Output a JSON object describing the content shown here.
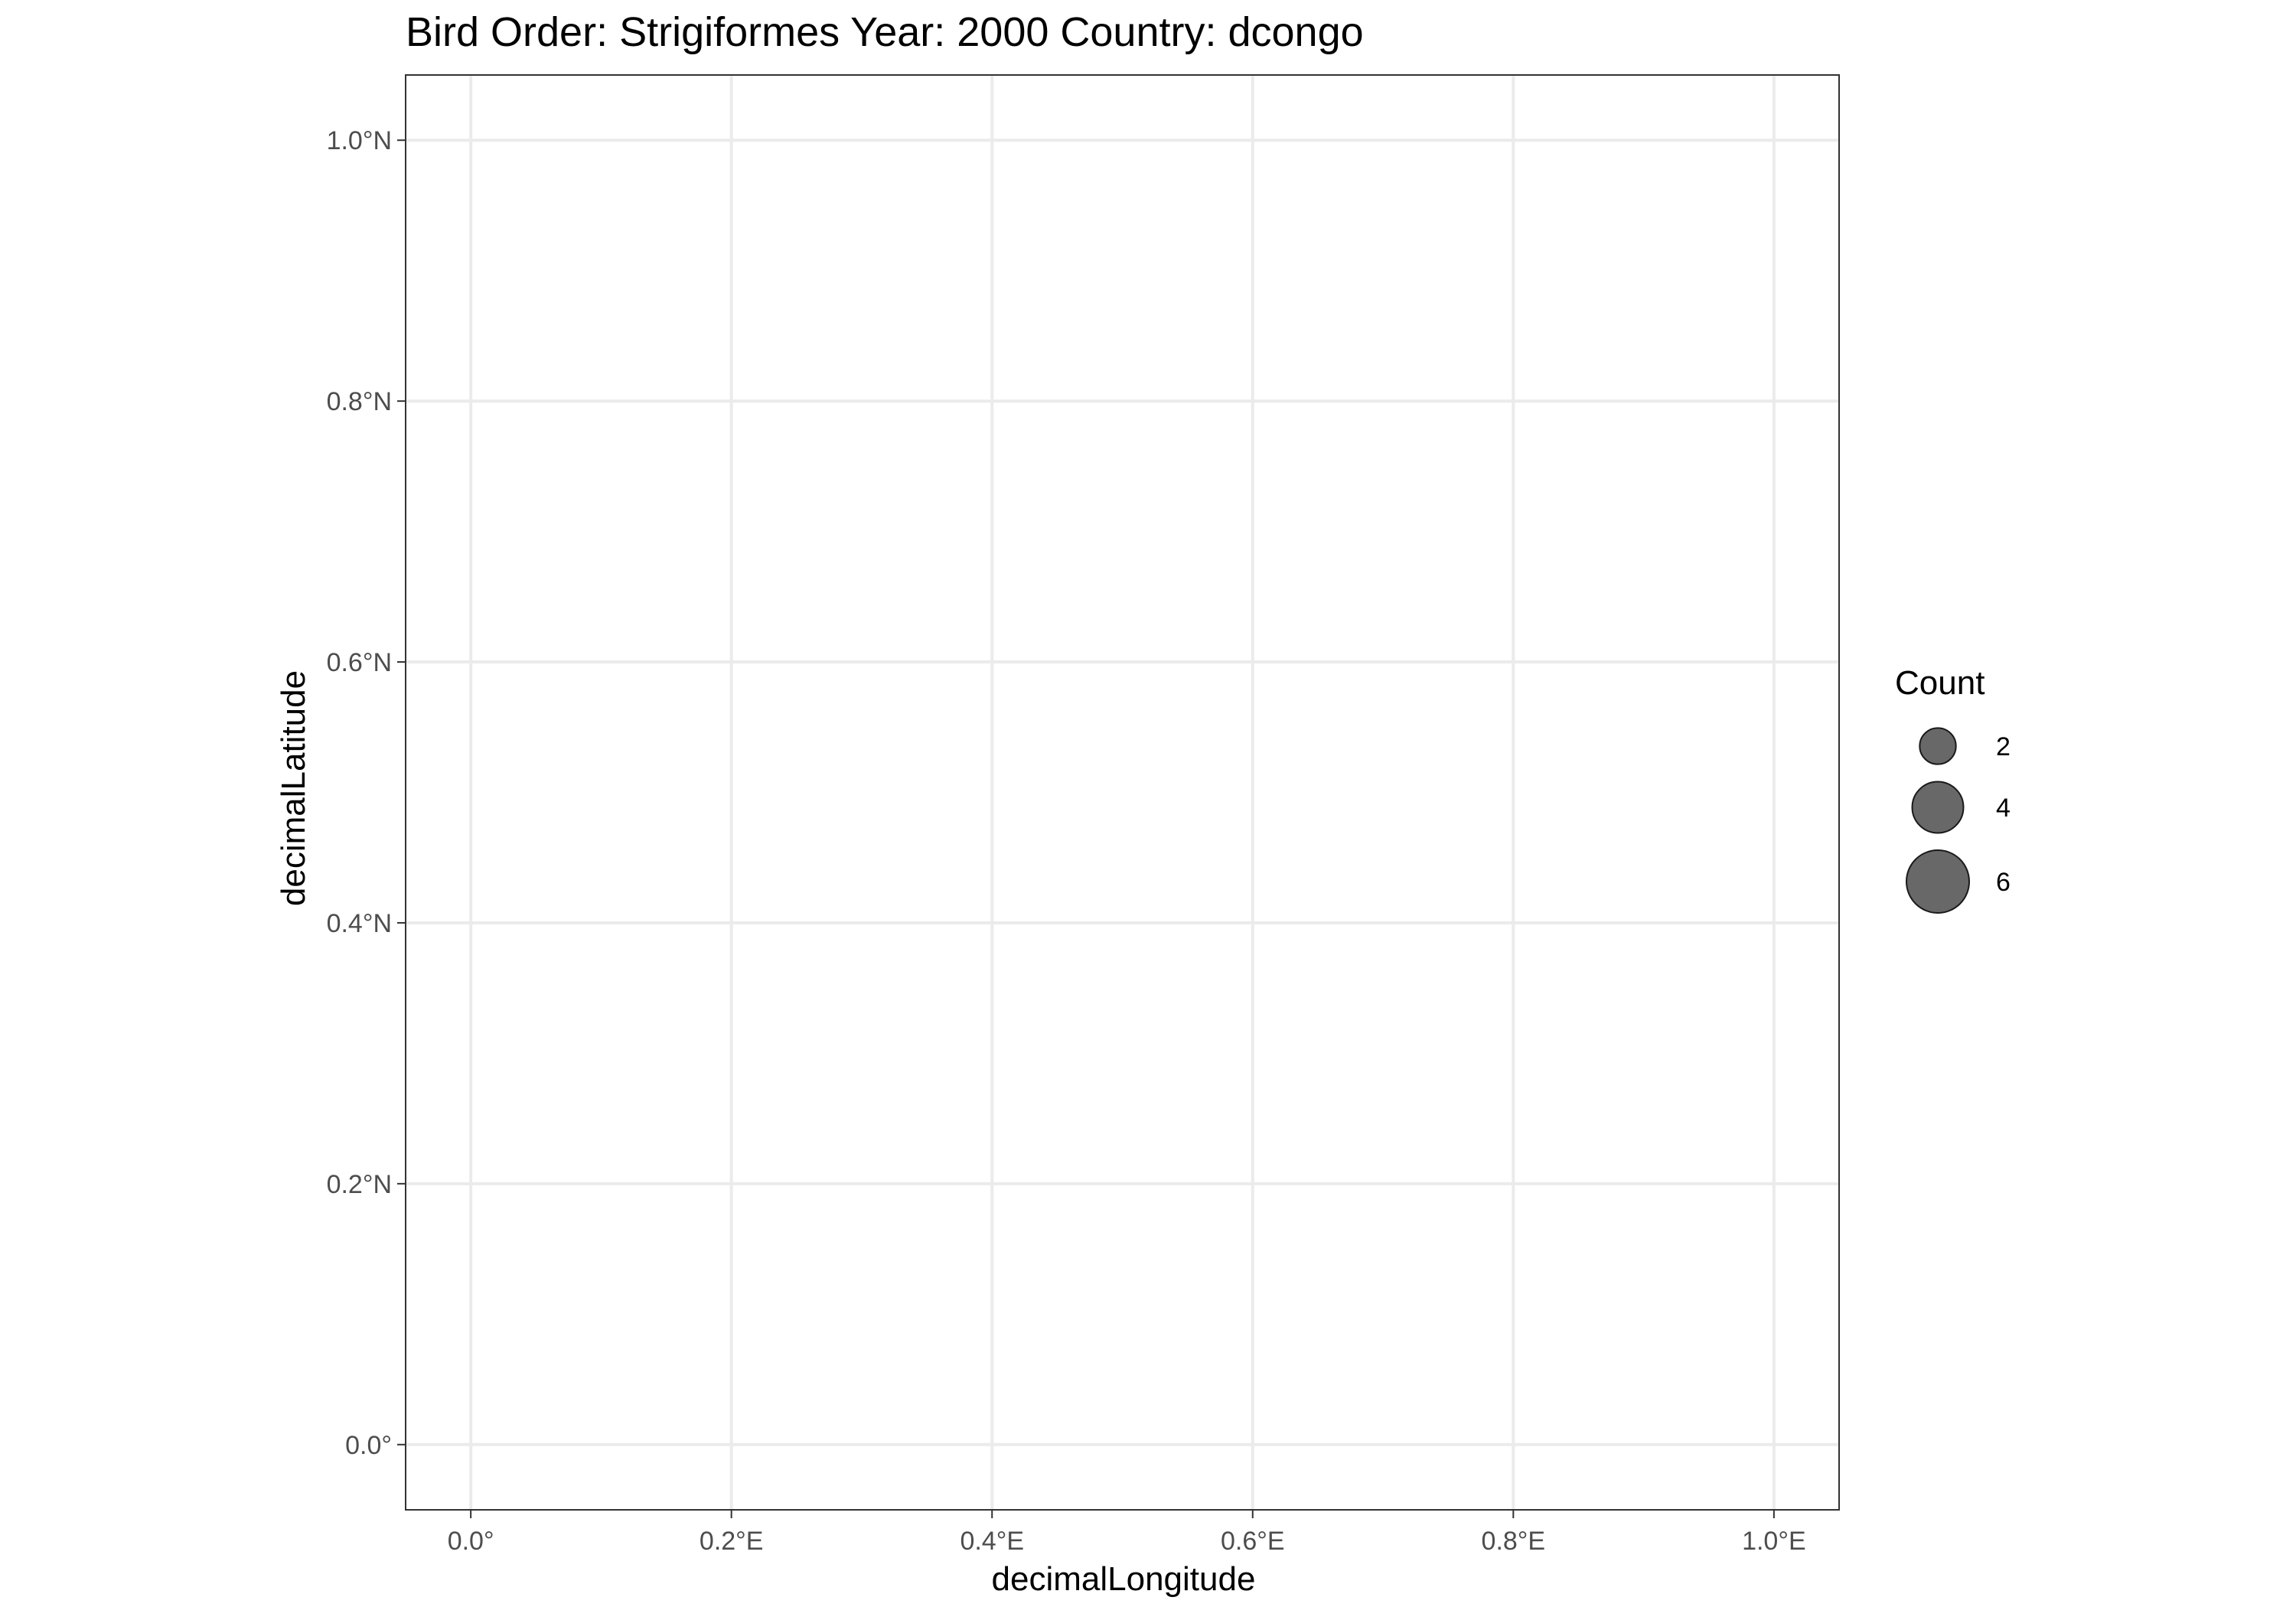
{
  "chart_data": {
    "type": "scatter",
    "title": "Bird Order: Strigiformes Year: 2000 Country: dcongo",
    "xlabel": "decimalLongitude",
    "ylabel": "decimalLatitude",
    "xlim": [
      -0.05,
      1.05
    ],
    "ylim": [
      -0.05,
      1.05
    ],
    "x_ticks": [
      {
        "value": 0.0,
        "label": "0.0°"
      },
      {
        "value": 0.2,
        "label": "0.2°E"
      },
      {
        "value": 0.4,
        "label": "0.4°E"
      },
      {
        "value": 0.6,
        "label": "0.6°E"
      },
      {
        "value": 0.8,
        "label": "0.8°E"
      },
      {
        "value": 1.0,
        "label": "1.0°E"
      }
    ],
    "y_ticks": [
      {
        "value": 0.0,
        "label": "0.0°"
      },
      {
        "value": 0.2,
        "label": "0.2°N"
      },
      {
        "value": 0.4,
        "label": "0.4°N"
      },
      {
        "value": 0.6,
        "label": "0.6°N"
      },
      {
        "value": 0.8,
        "label": "0.8°N"
      },
      {
        "value": 1.0,
        "label": "1.0°N"
      }
    ],
    "grid": true,
    "points": [],
    "legend": {
      "title": "Count",
      "placement": "right",
      "entries": [
        {
          "value": 2,
          "label": "2"
        },
        {
          "value": 4,
          "label": "4"
        },
        {
          "value": 6,
          "label": "6"
        }
      ]
    },
    "colors": {
      "point_fill": "#4d4d4d",
      "point_stroke": "#1a1a1a",
      "grid": "#ebebeb",
      "panel_border": "#333333",
      "tick_text": "#4d4d4d"
    }
  }
}
